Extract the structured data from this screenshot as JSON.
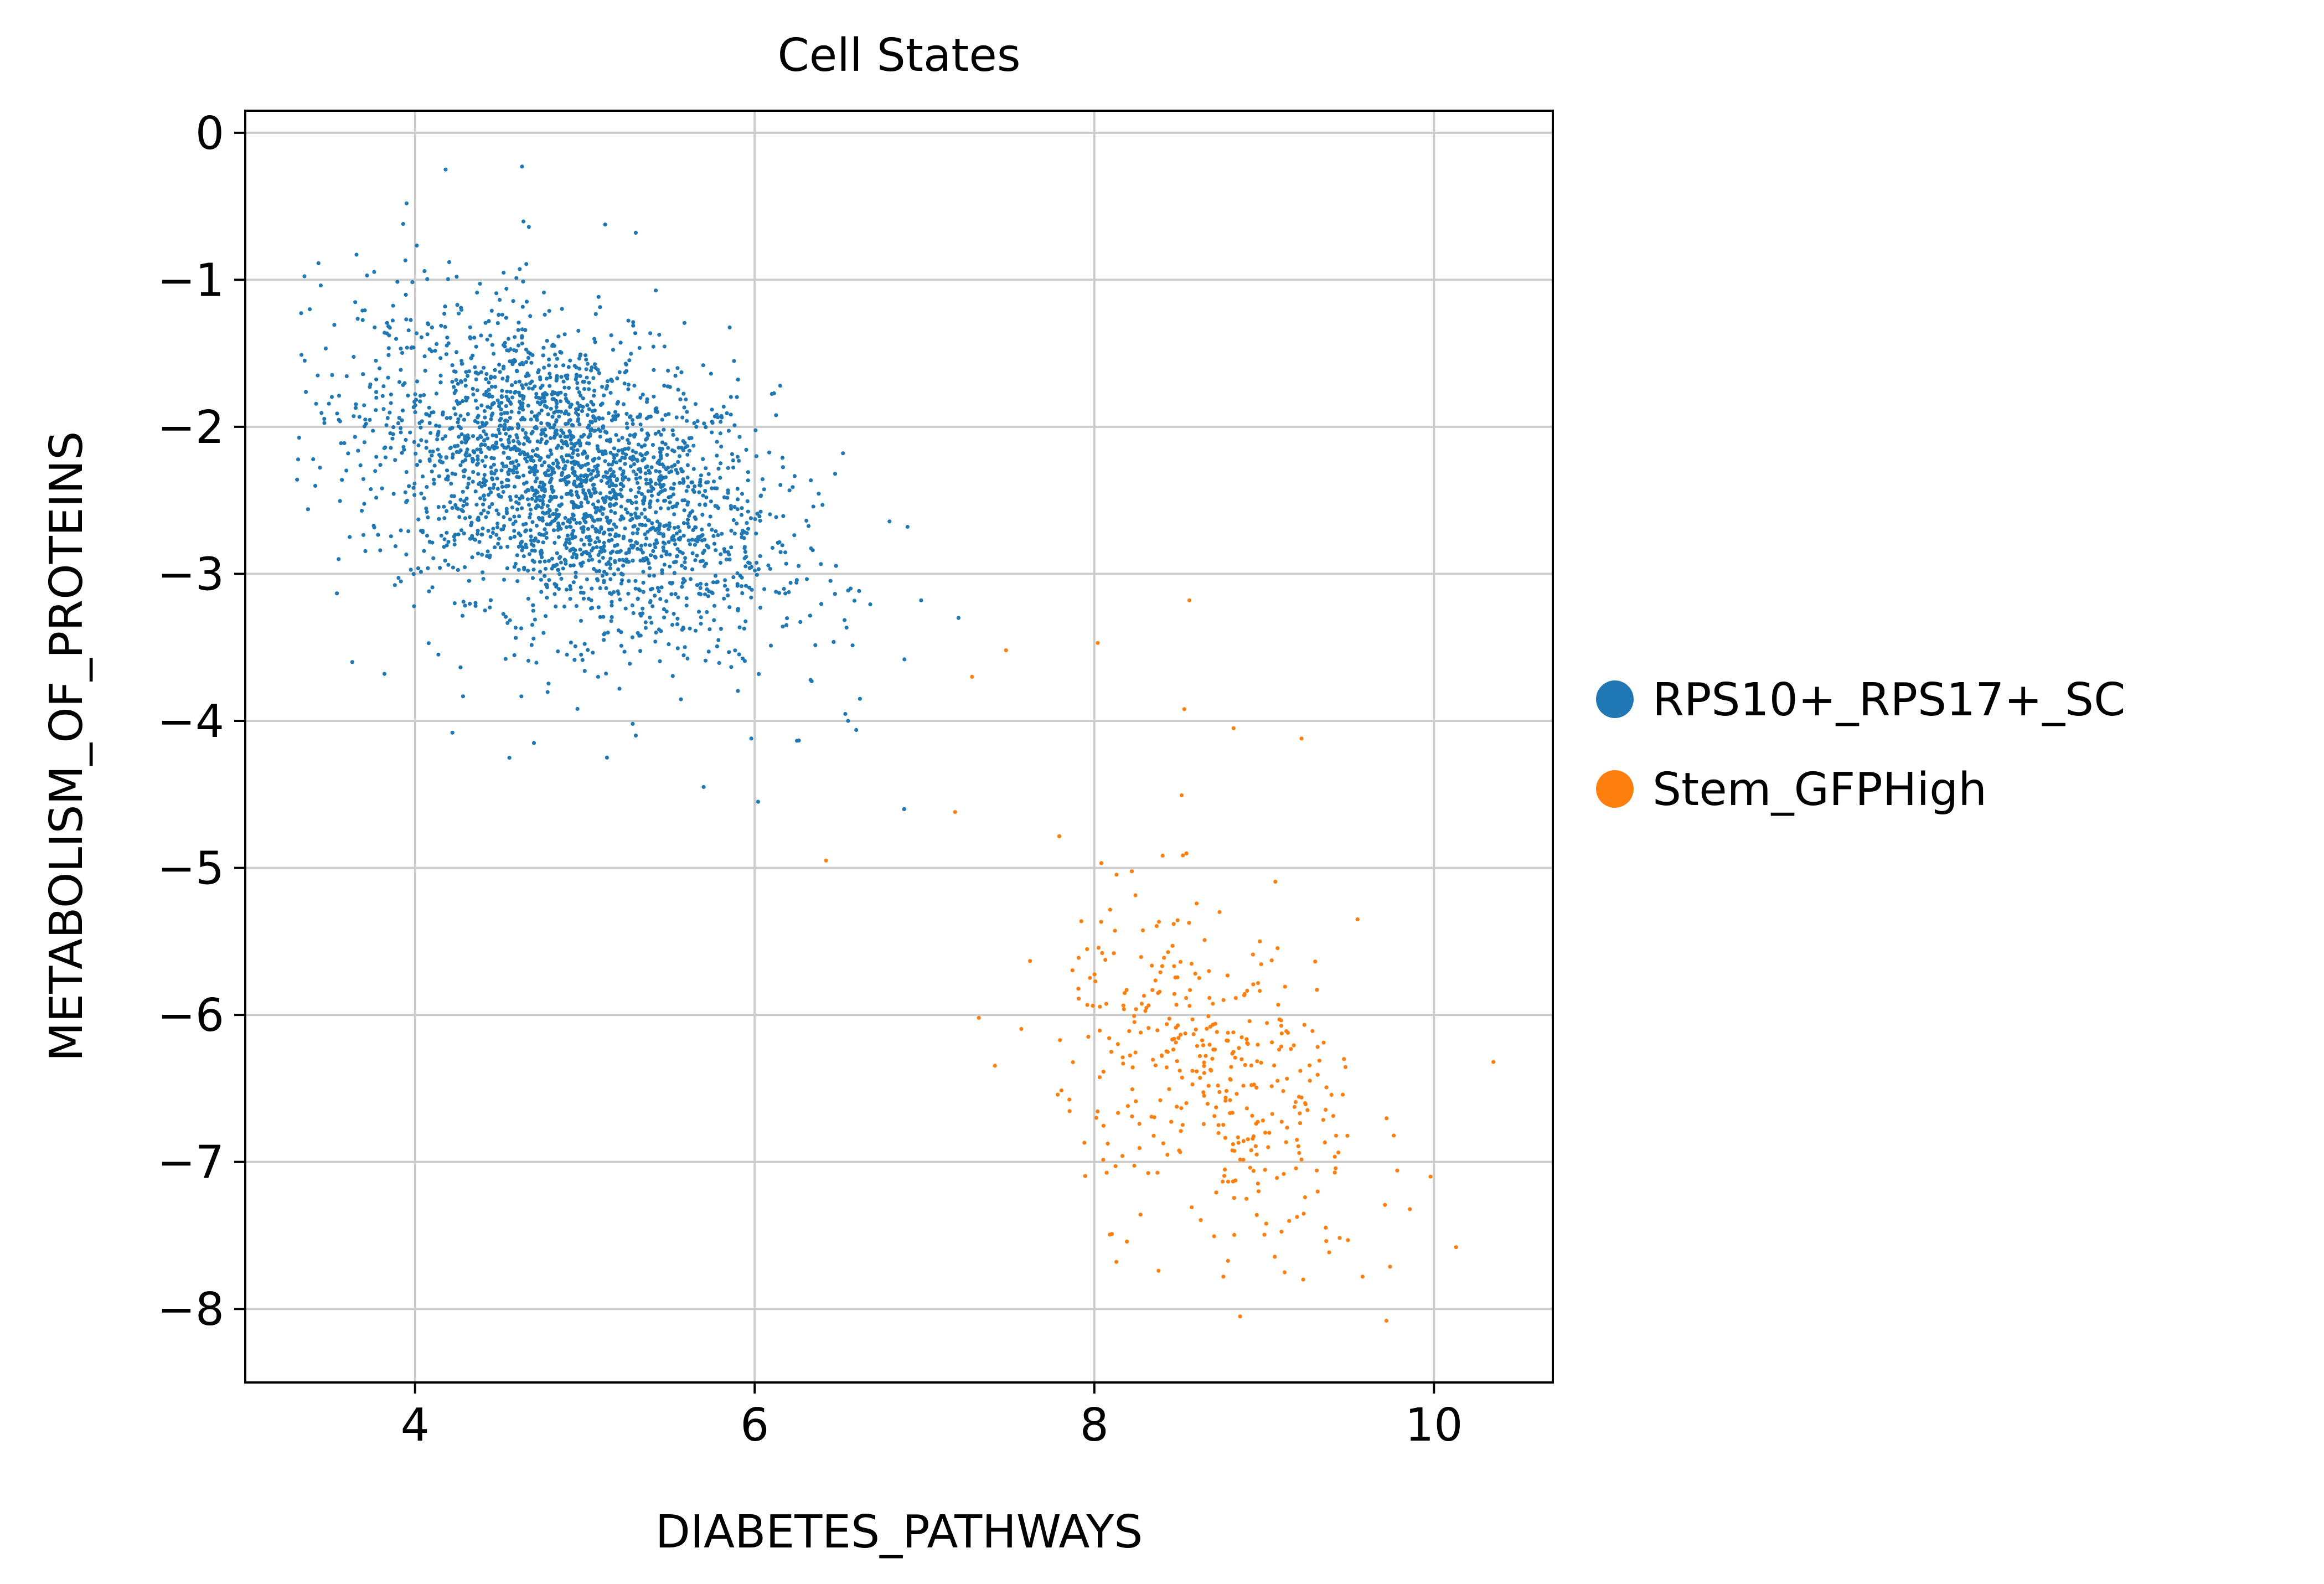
{
  "chart_data": {
    "type": "scatter",
    "title": "Cell States",
    "xlabel": "DIABETES_PATHWAYS",
    "ylabel": "METABOLISM_OF_PROTEINS",
    "xlim": [
      3.0,
      10.7
    ],
    "ylim": [
      -8.5,
      0.15
    ],
    "xticks": [
      4,
      6,
      8,
      10
    ],
    "xtick_labels": [
      "4",
      "6",
      "8",
      "10"
    ],
    "yticks": [
      0,
      -1,
      -2,
      -3,
      -4,
      -5,
      -6,
      -7,
      -8
    ],
    "ytick_labels": [
      "0",
      "−1",
      "−2",
      "−3",
      "−4",
      "−5",
      "−6",
      "−7",
      "−8"
    ],
    "grid": true,
    "legend_position": "right, outside plot",
    "series": [
      {
        "name": "RPS10+_RPS17+_SC",
        "color": "#1f77b4",
        "distribution": {
          "x_mean": 4.9,
          "x_sd": 0.6,
          "y_mean": -2.35,
          "y_sd": 0.55,
          "correlation": -0.4,
          "x_range": [
            3.3,
            6.9
          ],
          "y_range": [
            -4.6,
            -0.25
          ]
        },
        "points": [
          {
            "x": 4.18,
            "y": -0.25
          },
          {
            "x": 4.63,
            "y": -0.23
          },
          {
            "x": 3.95,
            "y": -0.48
          },
          {
            "x": 3.93,
            "y": -0.62
          },
          {
            "x": 4.67,
            "y": -0.64
          },
          {
            "x": 5.3,
            "y": -0.68
          },
          {
            "x": 3.38,
            "y": -1.2
          },
          {
            "x": 3.35,
            "y": -1.55
          },
          {
            "x": 3.4,
            "y": -2.22
          },
          {
            "x": 3.55,
            "y": -2.9
          },
          {
            "x": 3.63,
            "y": -3.6
          },
          {
            "x": 3.82,
            "y": -3.68
          },
          {
            "x": 4.22,
            "y": -4.08
          },
          {
            "x": 4.7,
            "y": -4.15
          },
          {
            "x": 5.3,
            "y": -4.1
          },
          {
            "x": 5.7,
            "y": -4.45
          },
          {
            "x": 5.98,
            "y": -4.12
          },
          {
            "x": 6.02,
            "y": -4.55
          },
          {
            "x": 6.15,
            "y": -1.72
          },
          {
            "x": 6.52,
            "y": -2.18
          },
          {
            "x": 6.9,
            "y": -2.68
          },
          {
            "x": 6.98,
            "y": -3.18
          },
          {
            "x": 7.2,
            "y": -3.3
          },
          {
            "x": 6.62,
            "y": -3.85
          },
          {
            "x": 6.88,
            "y": -4.6
          },
          {
            "x": 5.13,
            "y": -4.25
          },
          {
            "x": 6.55,
            "y": -4.0
          }
        ]
      },
      {
        "name": "Stem_GFPHigh",
        "color": "#ff7f0e",
        "distribution": {
          "x_mean": 8.7,
          "x_sd": 0.45,
          "y_mean": -6.45,
          "y_sd": 0.6,
          "correlation": -0.35,
          "x_range": [
            6.4,
            10.35
          ],
          "y_range": [
            -8.1,
            -3.2
          ]
        },
        "points": [
          {
            "x": 8.56,
            "y": -3.18
          },
          {
            "x": 8.02,
            "y": -3.47
          },
          {
            "x": 7.48,
            "y": -3.52
          },
          {
            "x": 8.53,
            "y": -3.92
          },
          {
            "x": 8.82,
            "y": -4.05
          },
          {
            "x": 9.22,
            "y": -4.12
          },
          {
            "x": 7.18,
            "y": -4.62
          },
          {
            "x": 6.42,
            "y": -4.95
          },
          {
            "x": 7.32,
            "y": -6.02
          },
          {
            "x": 10.35,
            "y": -6.32
          },
          {
            "x": 9.98,
            "y": -7.1
          },
          {
            "x": 10.13,
            "y": -7.58
          },
          {
            "x": 9.72,
            "y": -8.08
          },
          {
            "x": 9.58,
            "y": -7.78
          },
          {
            "x": 8.13,
            "y": -7.68
          },
          {
            "x": 8.76,
            "y": -7.78
          },
          {
            "x": 9.23,
            "y": -7.8
          },
          {
            "x": 9.55,
            "y": -5.35
          },
          {
            "x": 9.47,
            "y": -6.3
          },
          {
            "x": 7.28,
            "y": -3.7
          }
        ]
      }
    ]
  }
}
